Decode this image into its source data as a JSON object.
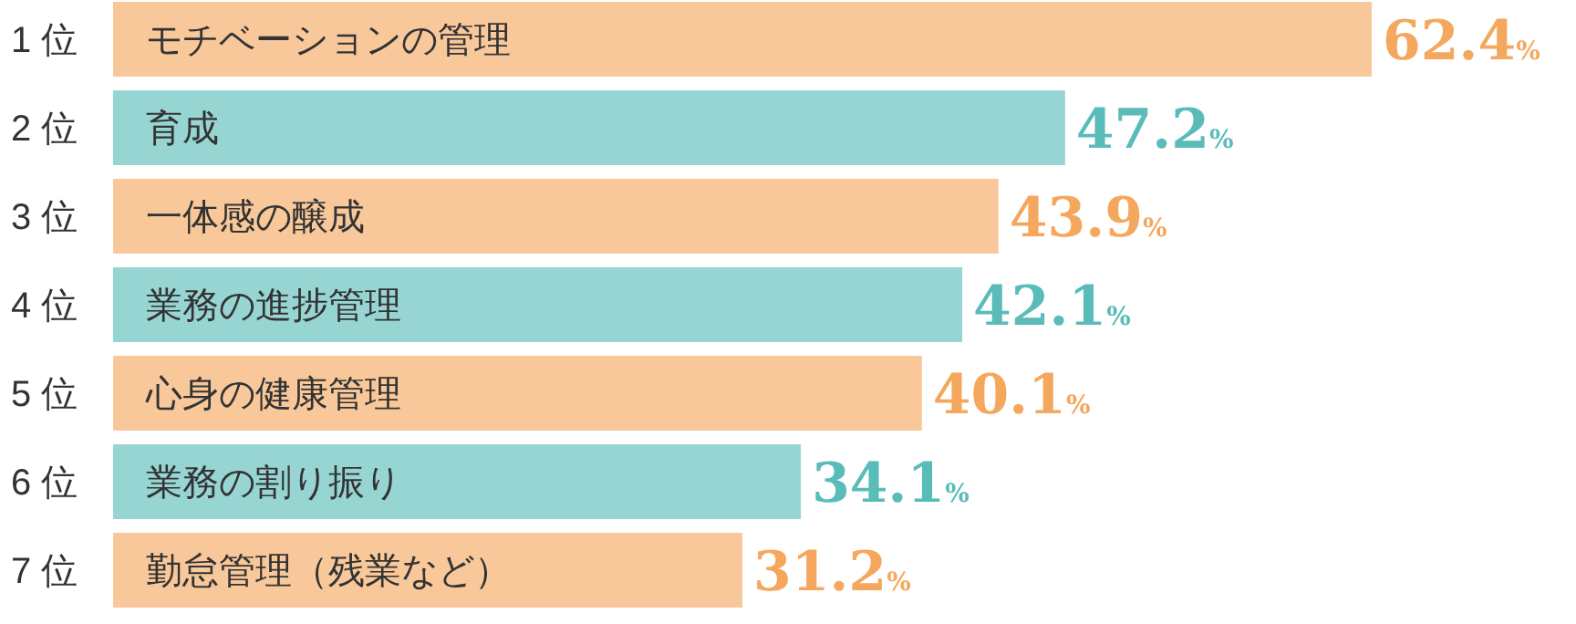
{
  "chart_data": {
    "type": "bar",
    "orientation": "horizontal",
    "categories": [
      "モチベーションの管理",
      "育成",
      "一体感の醸成",
      "業務の進捗管理",
      "心身の健康管理",
      "業務の割り振り",
      "勤怠管理（残業など）"
    ],
    "values": [
      62.4,
      47.2,
      43.9,
      42.1,
      40.1,
      34.1,
      31.2
    ],
    "colors": [
      "#f9c89a",
      "#97d5d3",
      "#f9c89a",
      "#97d5d3",
      "#f9c89a",
      "#97d5d3",
      "#f9c89a"
    ],
    "value_labels": [
      "62.4%",
      "47.2%",
      "43.9%",
      "42.1%",
      "40.1%",
      "34.1%",
      "31.2%"
    ],
    "annotations": [
      "1 位",
      "2 位",
      "3 位",
      "4 位",
      "5 位",
      "6 位",
      "7 位"
    ]
  }
}
